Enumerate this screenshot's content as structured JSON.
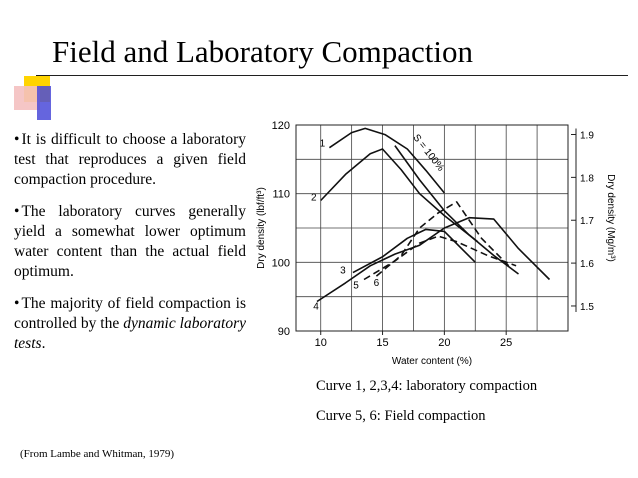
{
  "slide": {
    "title": "Field and Laboratory Compaction",
    "bullets": [
      {
        "text": "It is difficult to choose a laboratory test that reproduces a given field compaction procedure."
      },
      {
        "text": "The laboratory curves generally yield a somewhat lower optimum water content than the actual field optimum."
      },
      {
        "text_before": "The majority of field compaction is controlled by the ",
        "text_italic": "dynamic laboratory tests",
        "text_after": "."
      }
    ],
    "caption_1": "Curve 1, 2,3,4: laboratory compaction",
    "caption_2": "Curve 5, 6: Field compaction",
    "source": "(From Lambe and Whitman, 1979)"
  },
  "chart_data": {
    "type": "line",
    "xlabel": "Water content (%)",
    "ylabel_left": "Dry density (lbf/ft³)",
    "ylabel_right": "Dry density (Mg/m³)",
    "xlim": [
      8,
      30
    ],
    "ylim": [
      90,
      120
    ],
    "x_ticks": [
      10,
      15,
      20,
      25
    ],
    "y_ticks_left": [
      90,
      100,
      110,
      120
    ],
    "y_ticks_right": [
      1.5,
      1.6,
      1.7,
      1.8,
      1.9
    ],
    "y_tick_labels_right": [
      "1.5",
      "1.6",
      "1.7",
      "1.8",
      "1.9"
    ],
    "grid": true,
    "annotation": "S = 100%",
    "series": [
      {
        "name": "1",
        "style": "solid",
        "x": [
          10.7,
          12.5,
          13.6,
          15.2,
          17.0,
          18.5,
          20.0
        ],
        "y": [
          116.7,
          118.9,
          119.5,
          118.6,
          116.5,
          113.4,
          110.1
        ]
      },
      {
        "name": "2",
        "style": "solid",
        "x": [
          10.0,
          12.0,
          14.0,
          15.0,
          16.5,
          18.0,
          20.0,
          22.7
        ],
        "y": [
          109.0,
          112.8,
          115.8,
          116.5,
          113.5,
          110.0,
          106.8,
          103.0
        ]
      },
      {
        "name": "3",
        "style": "solid",
        "x": [
          12.6,
          15.0,
          17.0,
          18.5,
          20.0,
          22.5
        ],
        "y": [
          98.5,
          100.8,
          103.5,
          104.8,
          104.5,
          100.0
        ]
      },
      {
        "name": "4",
        "style": "solid",
        "x": [
          9.7,
          12.0,
          14.0,
          16.0,
          18.0,
          20.0,
          22.0,
          24.0,
          26.0,
          28.5
        ],
        "y": [
          94.3,
          97.0,
          99.5,
          101.2,
          102.5,
          105.0,
          106.5,
          106.3,
          102.0,
          97.5
        ]
      },
      {
        "name": "5",
        "style": "dashed",
        "x": [
          13.5,
          16.0,
          18.0,
          19.5,
          21.0,
          23.5,
          25.8
        ],
        "y": [
          97.5,
          100.2,
          102.8,
          103.8,
          103.0,
          101.0,
          99.5
        ]
      },
      {
        "name": "6",
        "style": "dashed",
        "x": [
          14.5,
          16.5,
          18.0,
          19.5,
          21.0,
          23.0,
          25.2
        ],
        "y": [
          98.0,
          101.0,
          105.0,
          107.2,
          108.8,
          103.5,
          99.5
        ]
      },
      {
        "name": "S = 100%",
        "style": "solid",
        "x": [
          16.0,
          18.0,
          20.0,
          22.0,
          24.0,
          26.0
        ],
        "y": [
          117.0,
          112.0,
          107.5,
          104.0,
          101.0,
          98.3
        ]
      }
    ]
  }
}
